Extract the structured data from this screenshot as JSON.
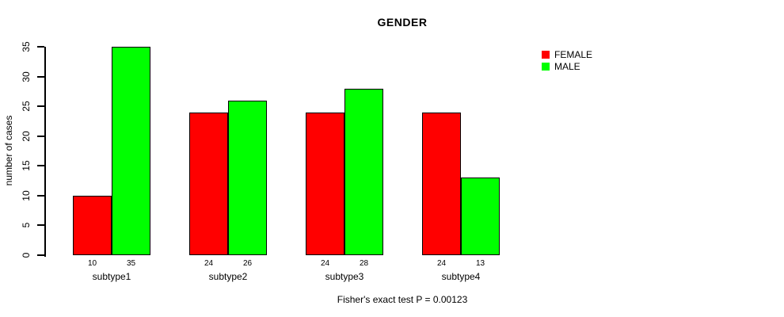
{
  "chart_data": {
    "type": "bar",
    "title": "GENDER",
    "ylabel": "number of cases",
    "xlabel": "",
    "categories": [
      "subtype1",
      "subtype2",
      "subtype3",
      "subtype4"
    ],
    "series": [
      {
        "name": "FEMALE",
        "color": "#FF0000",
        "values": [
          10,
          24,
          24,
          24
        ]
      },
      {
        "name": "MALE",
        "color": "#00FF00",
        "values": [
          35,
          26,
          28,
          13
        ]
      }
    ],
    "bar_value_labels": [
      [
        "10",
        "35"
      ],
      [
        "24",
        "26"
      ],
      [
        "24",
        "28"
      ],
      [
        "24",
        "13"
      ]
    ],
    "ylim": [
      0,
      35
    ],
    "yticks": [
      0,
      5,
      10,
      15,
      20,
      25,
      30,
      35
    ],
    "grid": false,
    "legend_position": "right",
    "annotation": "Fisher's exact test P = 0.00123"
  },
  "colors": {
    "background": "#FFFFFF",
    "axis": "#000000",
    "text": "#000000"
  }
}
